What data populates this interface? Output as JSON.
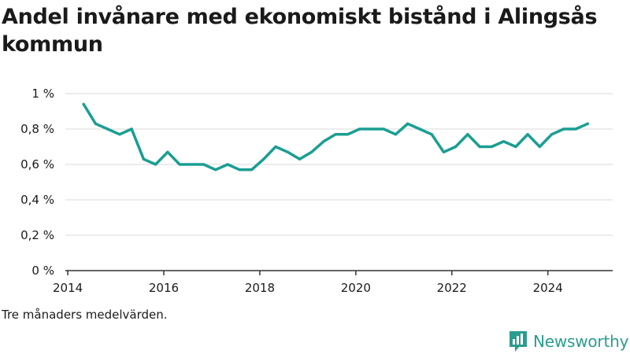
{
  "title": "Andel invånare med ekonomiskt bistånd i Alingsås kommun",
  "footnote": "Tre månaders medelvärden.",
  "brand": {
    "name": "Newsworthy",
    "icon": "newsworthy-logo-icon"
  },
  "colors": {
    "line": "#1a9e93",
    "grid": "#d9d9d9",
    "axis": "#333333",
    "brand": "#2a9d8f"
  },
  "chart_data": {
    "type": "line",
    "x_tick_labels": [
      "2014",
      "2016",
      "2018",
      "2020",
      "2022",
      "2024"
    ],
    "x_ticks": [
      2014,
      2016,
      2018,
      2020,
      2022,
      2024
    ],
    "y_tick_labels": [
      "0 %",
      "0,2 %",
      "0,4 %",
      "0,6 %",
      "0,8 %",
      "1 %"
    ],
    "y_ticks": [
      0,
      0.2,
      0.4,
      0.6,
      0.8,
      1.0
    ],
    "xlim": [
      2013.95,
      2025.35
    ],
    "ylim": [
      0,
      1.0
    ],
    "grid": true,
    "x": [
      2014.33,
      2014.58,
      2014.83,
      2015.08,
      2015.33,
      2015.58,
      2015.83,
      2016.08,
      2016.33,
      2016.58,
      2016.83,
      2017.08,
      2017.33,
      2017.58,
      2017.83,
      2018.08,
      2018.33,
      2018.58,
      2018.83,
      2019.08,
      2019.33,
      2019.58,
      2019.83,
      2020.08,
      2020.33,
      2020.58,
      2020.83,
      2021.08,
      2021.33,
      2021.58,
      2021.83,
      2022.08,
      2022.33,
      2022.58,
      2022.83,
      2023.08,
      2023.33,
      2023.58,
      2023.83,
      2024.08,
      2024.33,
      2024.58,
      2024.83
    ],
    "values": [
      0.94,
      0.83,
      0.8,
      0.77,
      0.8,
      0.63,
      0.6,
      0.67,
      0.6,
      0.6,
      0.6,
      0.57,
      0.6,
      0.57,
      0.57,
      0.63,
      0.7,
      0.67,
      0.63,
      0.67,
      0.73,
      0.77,
      0.77,
      0.8,
      0.8,
      0.8,
      0.77,
      0.83,
      0.8,
      0.77,
      0.67,
      0.7,
      0.77,
      0.7,
      0.7,
      0.73,
      0.7,
      0.77,
      0.7,
      0.77,
      0.8,
      0.8,
      0.83
    ]
  }
}
